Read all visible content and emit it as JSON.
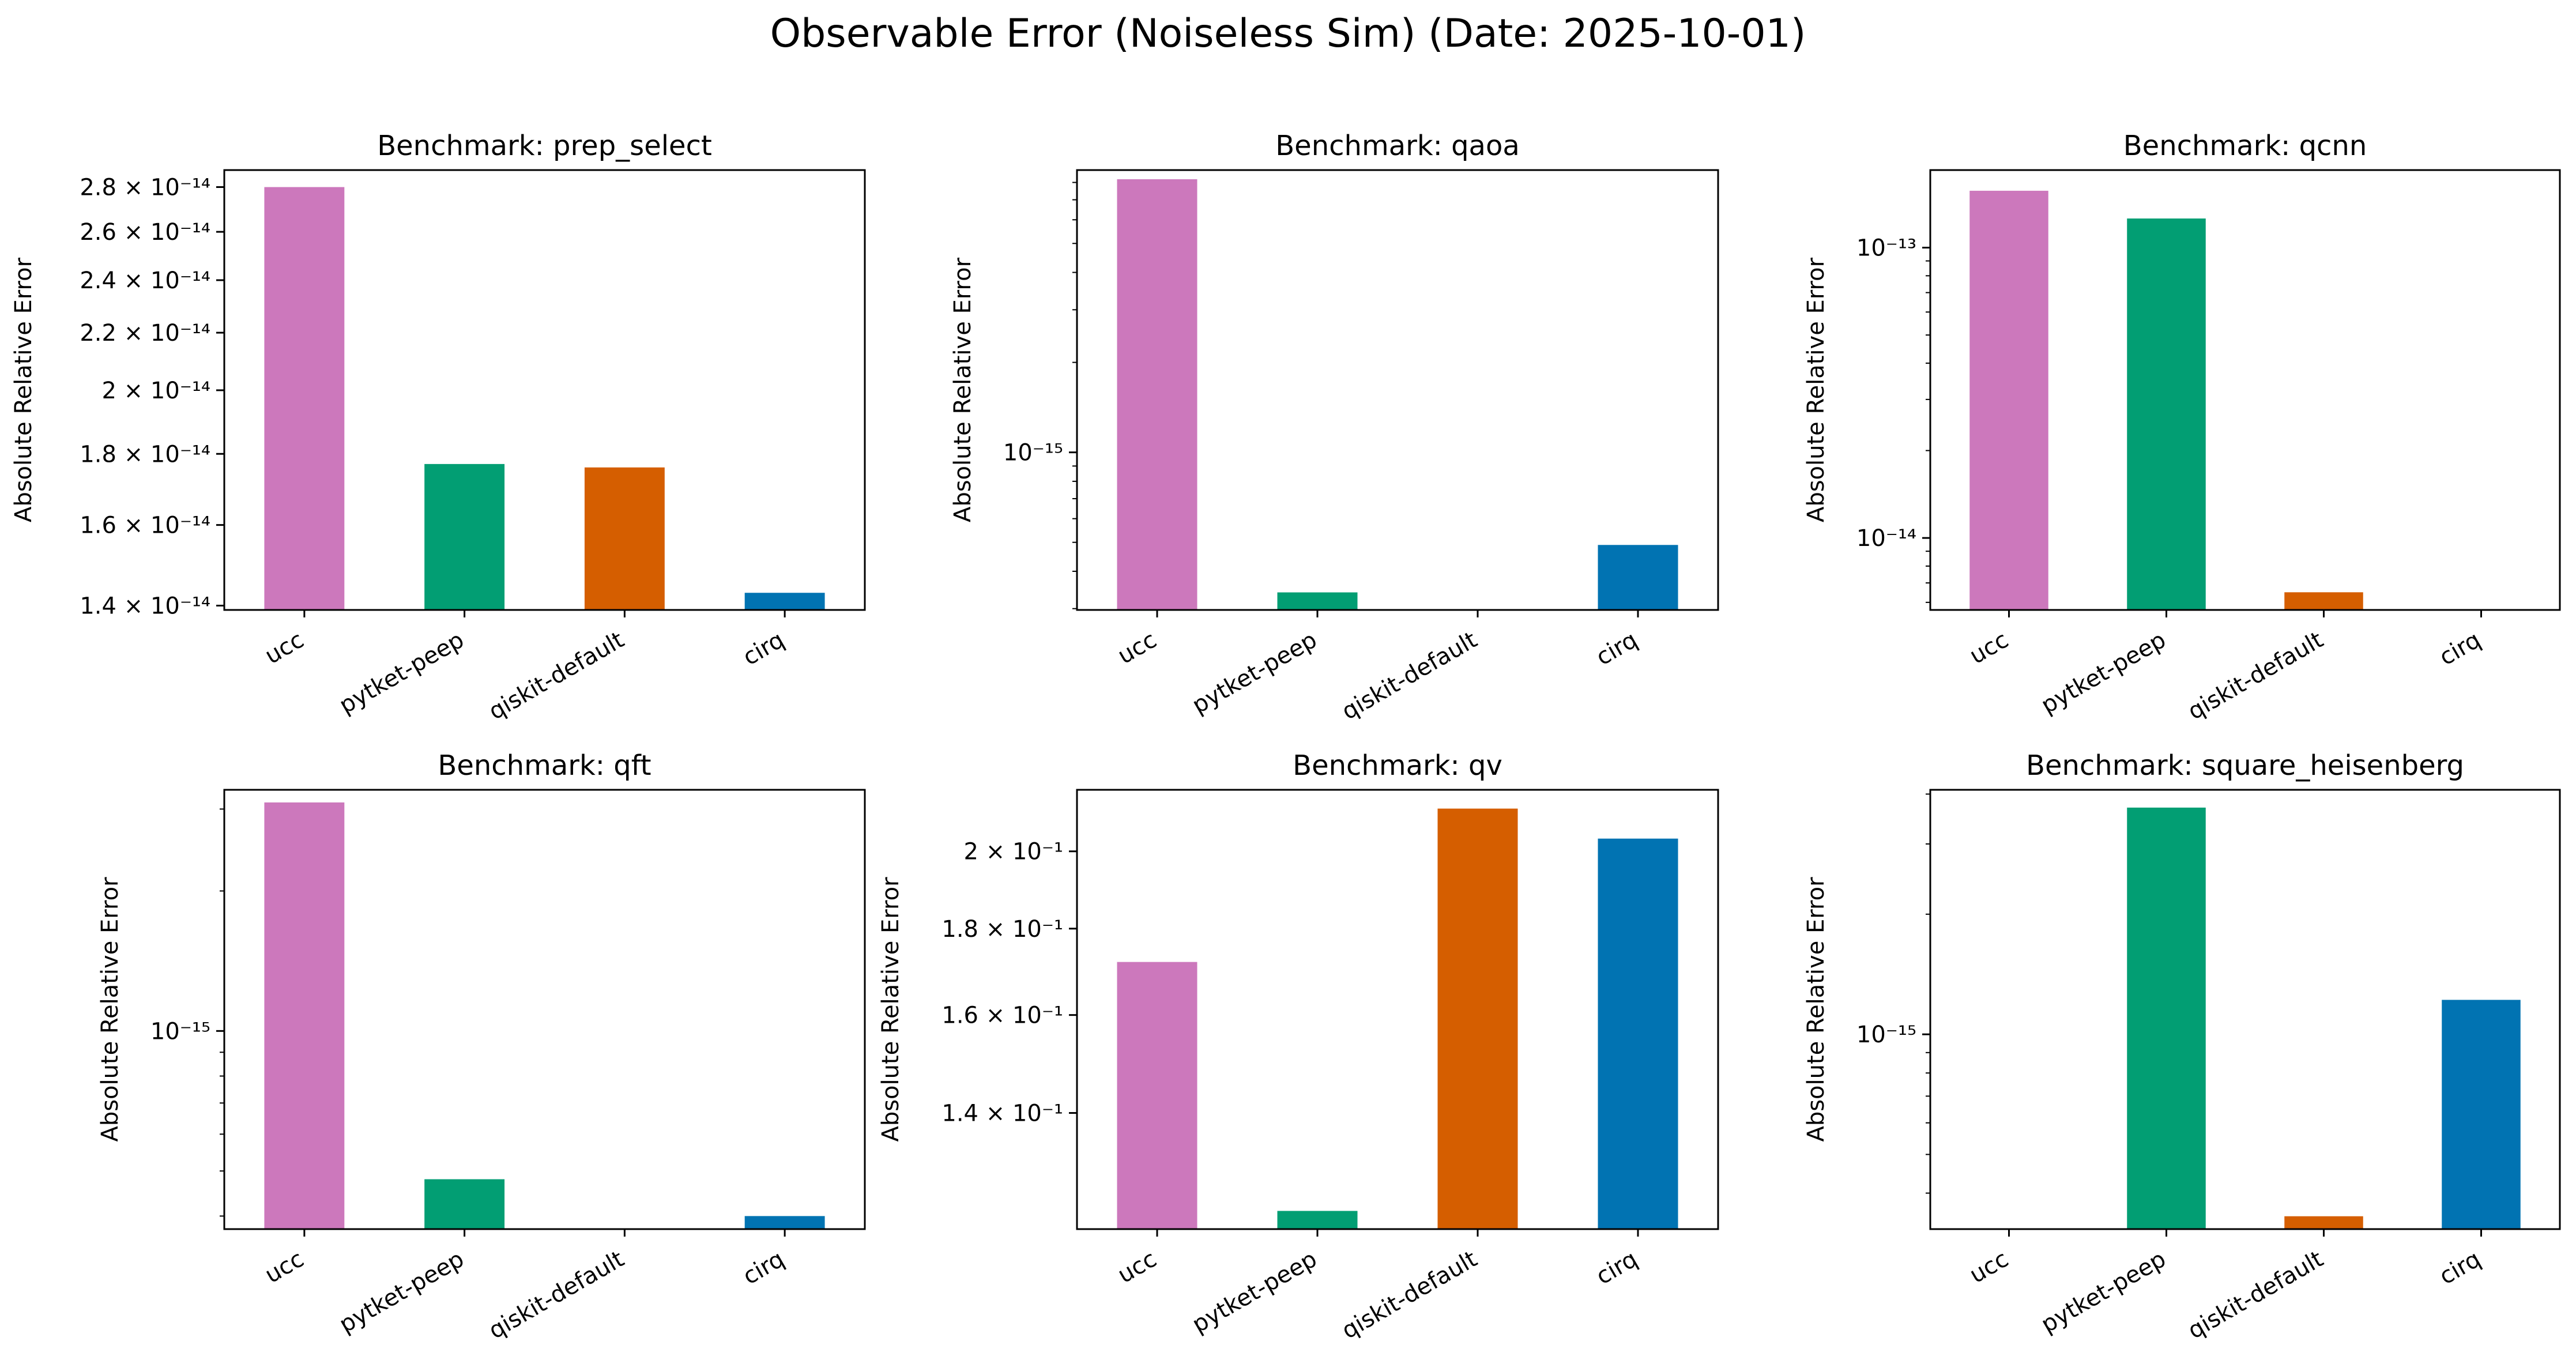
{
  "title": "Observable Error (Noiseless Sim) (Date: 2025-10-01)",
  "colors": {
    "ucc": "#cc78bc",
    "pytket-peep": "#029e73",
    "qiskit-default": "#d55e00",
    "cirq": "#0173b2"
  },
  "chart_data": [
    {
      "type": "bar",
      "title": "Benchmark: prep_select",
      "ylabel": "Absolute Relative Error",
      "yscale": "log",
      "categories": [
        "ucc",
        "pytket-peep",
        "qiskit-default",
        "cirq"
      ],
      "values": [
        2.8e-14,
        1.77e-14,
        1.76e-14,
        1.43e-14
      ],
      "ylim": [
        1.39e-14,
        2.88e-14
      ],
      "yticks": [
        {
          "value": 1.4e-14,
          "label": "1.4 × 10⁻¹⁴"
        },
        {
          "value": 1.6e-14,
          "label": "1.6 × 10⁻¹⁴"
        },
        {
          "value": 1.8e-14,
          "label": "1.8 × 10⁻¹⁴"
        },
        {
          "value": 2e-14,
          "label": "2 × 10⁻¹⁴"
        },
        {
          "value": 2.2e-14,
          "label": "2.2 × 10⁻¹⁴"
        },
        {
          "value": 2.4e-14,
          "label": "2.4 × 10⁻¹⁴"
        },
        {
          "value": 2.6e-14,
          "label": "2.6 × 10⁻¹⁴"
        },
        {
          "value": 2.8e-14,
          "label": "2.8 × 10⁻¹⁴"
        }
      ],
      "minor_ticks": []
    },
    {
      "type": "bar",
      "title": "Benchmark: qaoa",
      "ylabel": "Absolute Relative Error",
      "yscale": "log",
      "categories": [
        "ucc",
        "pytket-peep",
        "qiskit-default",
        "cirq"
      ],
      "values": [
        8.2e-15,
        3.4e-16,
        2.9e-16,
        4.9e-16
      ],
      "ylim": [
        2.97e-16,
        8.8e-15
      ],
      "yticks": [
        {
          "value": 1e-15,
          "label": "10⁻¹⁵"
        }
      ],
      "minor_ticks": [
        3e-16,
        4e-16,
        5e-16,
        6e-16,
        7e-16,
        8e-16,
        9e-16,
        2e-15,
        3e-15,
        4e-15,
        5e-15,
        6e-15,
        7e-15,
        8e-15
      ]
    },
    {
      "type": "bar",
      "title": "Benchmark: qcnn",
      "ylabel": "Absolute Relative Error",
      "yscale": "log",
      "categories": [
        "ucc",
        "pytket-peep",
        "qiskit-default",
        "cirq"
      ],
      "values": [
        1.57e-13,
        1.26e-13,
        6.5e-15,
        5.5e-15
      ],
      "ylim": [
        5.65e-15,
        1.85e-13
      ],
      "yticks": [
        {
          "value": 1e-14,
          "label": "10⁻¹⁴"
        },
        {
          "value": 1e-13,
          "label": "10⁻¹³"
        }
      ],
      "minor_ticks": [
        6e-15,
        7e-15,
        8e-15,
        9e-15,
        2e-14,
        3e-14,
        4e-14,
        5e-14,
        6e-14,
        7e-14,
        8e-14,
        9e-14
      ]
    },
    {
      "type": "bar",
      "title": "Benchmark: qft",
      "ylabel": "Absolute Relative Error",
      "yscale": "log",
      "categories": [
        "ucc",
        "pytket-peep",
        "qiskit-default",
        "cirq"
      ],
      "values": [
        3.1e-15,
        4.8e-16,
        3.5e-16,
        4e-16
      ],
      "ylim": [
        3.75e-16,
        3.3e-15
      ],
      "yticks": [
        {
          "value": 1e-15,
          "label": "10⁻¹⁵"
        }
      ],
      "minor_ticks": [
        4e-16,
        5e-16,
        6e-16,
        7e-16,
        8e-16,
        9e-16,
        2e-15,
        3e-15
      ]
    },
    {
      "type": "bar",
      "title": "Benchmark: qv",
      "ylabel": "Absolute Relative Error",
      "yscale": "log",
      "categories": [
        "ucc",
        "pytket-peep",
        "qiskit-default",
        "cirq"
      ],
      "values": [
        0.172,
        0.1225,
        0.212,
        0.2035
      ],
      "ylim": [
        0.1195,
        0.2175
      ],
      "yticks": [
        {
          "value": 0.14,
          "label": "1.4 × 10⁻¹"
        },
        {
          "value": 0.16,
          "label": "1.6 × 10⁻¹"
        },
        {
          "value": 0.18,
          "label": "1.8 × 10⁻¹"
        },
        {
          "value": 0.2,
          "label": "2 × 10⁻¹"
        }
      ],
      "minor_ticks": []
    },
    {
      "type": "bar",
      "title": "Benchmark: square_heisenberg",
      "ylabel": "Absolute Relative Error",
      "yscale": "log",
      "categories": [
        "ucc",
        "pytket-peep",
        "qiskit-default",
        "cirq"
      ],
      "values": [
        3e-16,
        3.7e-15,
        3.5e-16,
        1.22e-15
      ],
      "ylim": [
        3.25e-16,
        4.1e-15
      ],
      "yticks": [
        {
          "value": 1e-15,
          "label": "10⁻¹⁵"
        }
      ],
      "minor_ticks": [
        4e-16,
        5e-16,
        6e-16,
        7e-16,
        8e-16,
        9e-16,
        2e-15,
        3e-15,
        4e-15
      ]
    }
  ]
}
